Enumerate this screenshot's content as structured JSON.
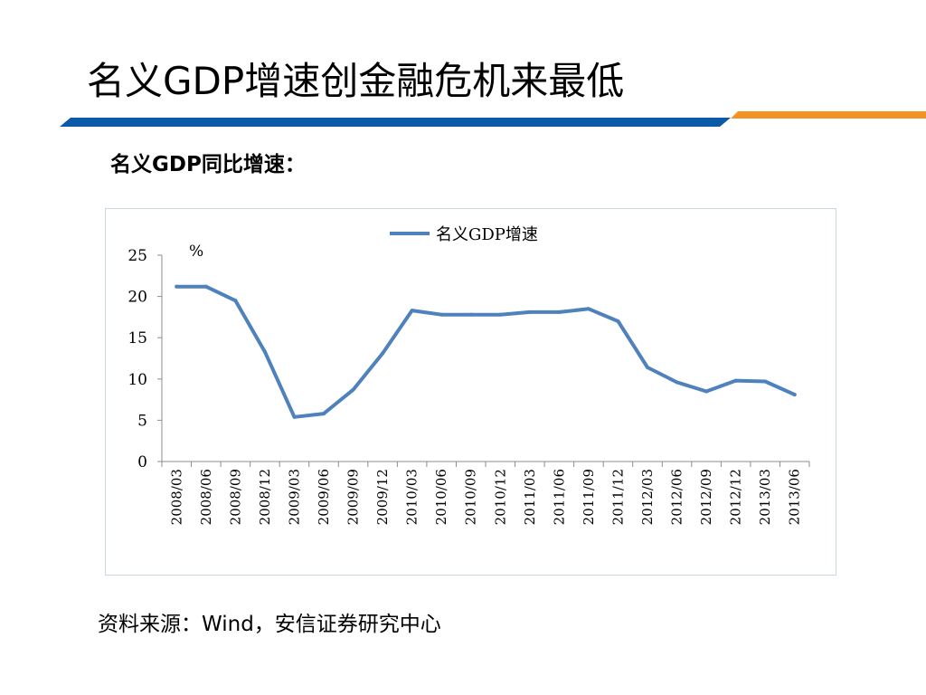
{
  "slide": {
    "title": "名义GDP增速创金融危机来最低",
    "subtitle": "名义GDP同比增速：",
    "source": "资料来源：Wind，安信证券研究中心",
    "colors": {
      "header_bar_blue": "#0b5aa8",
      "header_bar_orange": "#f39323"
    }
  },
  "chart_data": {
    "type": "line",
    "title": "",
    "xlabel": "",
    "ylabel": "%",
    "categories": [
      "2008/03",
      "2008/06",
      "2008/09",
      "2008/12",
      "2009/03",
      "2009/06",
      "2009/09",
      "2009/12",
      "2010/03",
      "2010/06",
      "2010/09",
      "2010/12",
      "2011/03",
      "2011/06",
      "2011/09",
      "2011/12",
      "2012/03",
      "2012/06",
      "2012/09",
      "2012/12",
      "2013/03",
      "2013/06"
    ],
    "series": [
      {
        "name": "名义GDP增速",
        "color": "#4f81bd",
        "values": [
          21.2,
          21.2,
          19.5,
          13.3,
          5.4,
          5.8,
          8.7,
          13.1,
          18.3,
          17.8,
          17.8,
          17.8,
          18.1,
          18.1,
          18.5,
          17.0,
          11.4,
          9.6,
          8.5,
          9.8,
          9.7,
          8.1
        ]
      }
    ],
    "ylim": [
      0,
      25
    ],
    "yticks": [
      0,
      5,
      10,
      15,
      20,
      25
    ],
    "grid": false,
    "legend_position": "top-center"
  }
}
